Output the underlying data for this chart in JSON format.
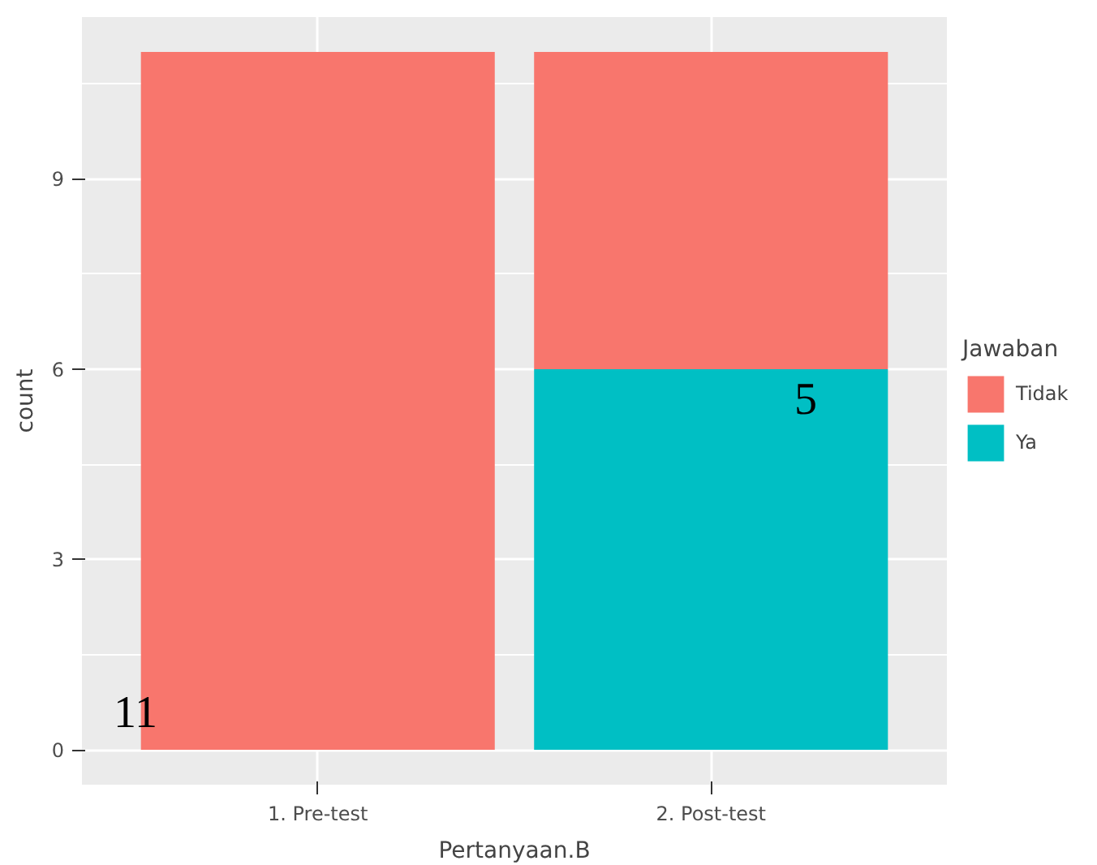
{
  "chart_data": {
    "type": "bar",
    "stacked": true,
    "xlabel": "Pertanyaan.B",
    "ylabel": "count",
    "legend_title": "Jawaban",
    "categories": [
      "1. Pre-test",
      "2. Post-test"
    ],
    "series": [
      {
        "name": "Ya",
        "color": "#00bfc4",
        "values": [
          0,
          6
        ]
      },
      {
        "name": "Tidak",
        "color": "#f8766d",
        "values": [
          11,
          5
        ]
      }
    ],
    "ylim": [
      -0.55,
      11.55
    ],
    "yticks": [
      0,
      3,
      6,
      9
    ],
    "grid": true,
    "legend": "right",
    "annotations": [
      "11",
      "5"
    ]
  }
}
